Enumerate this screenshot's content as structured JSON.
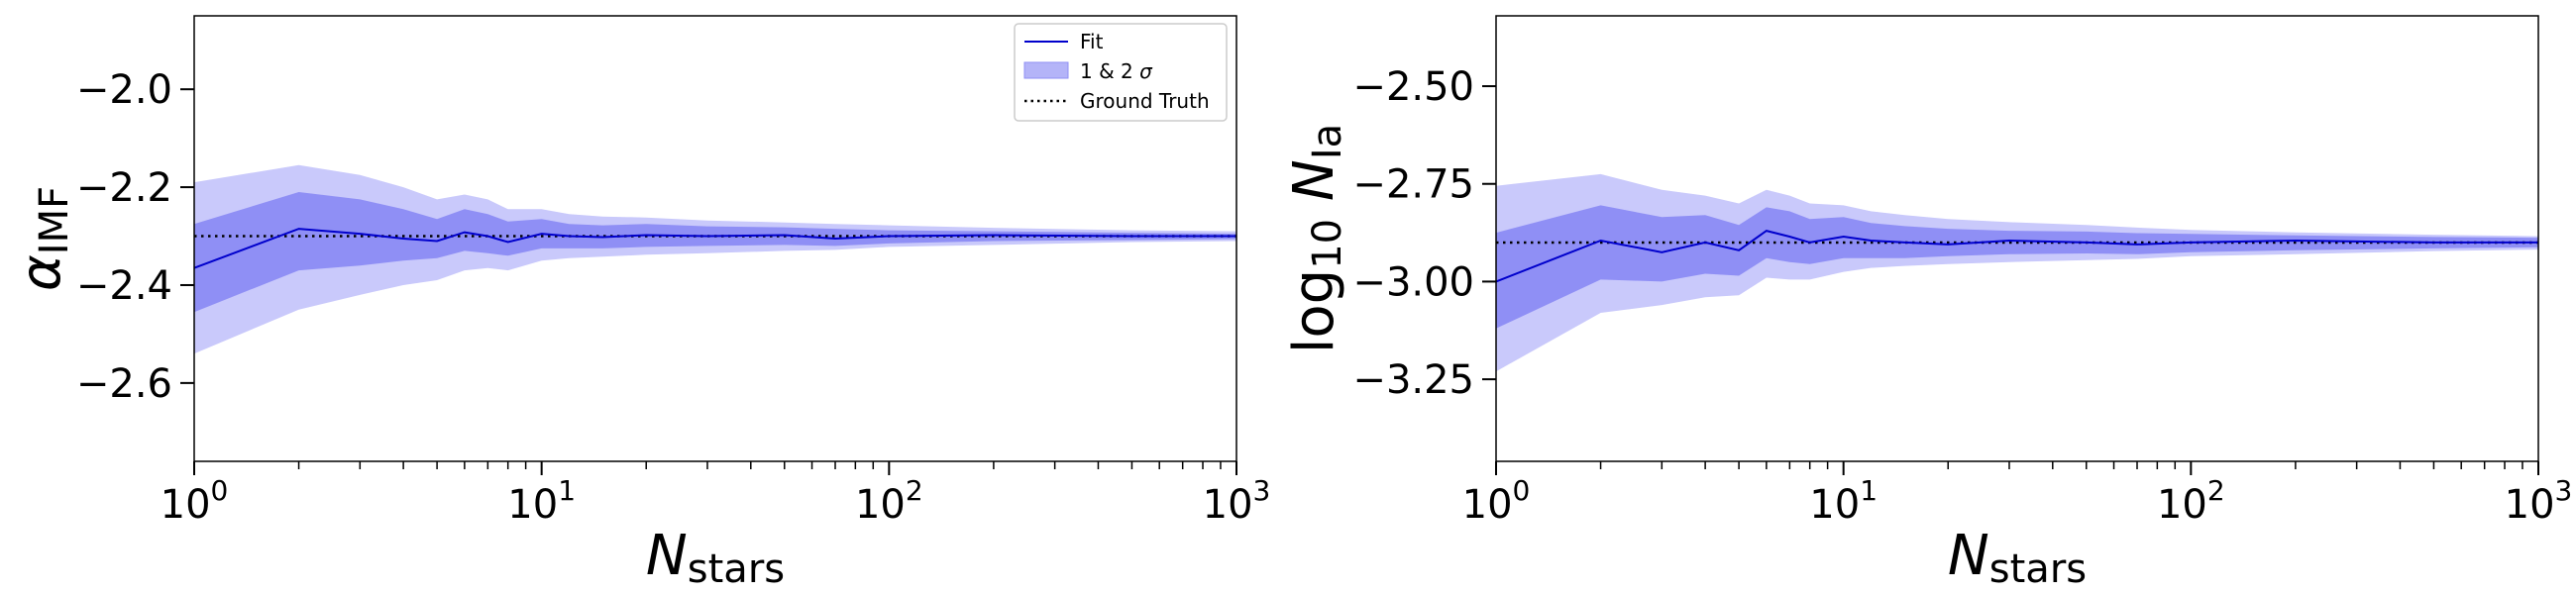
{
  "chart_data": [
    {
      "type": "line",
      "panel": "left",
      "xscale": "log",
      "xlim": [
        1,
        1000
      ],
      "ylim": [
        -2.76,
        -1.85
      ],
      "xlabel": {
        "base": "N",
        "sub": "stars"
      },
      "ylabel": {
        "base": "α",
        "sub": "IMF"
      },
      "x_ticks": [
        {
          "base": "10",
          "exp": "0",
          "value": 1
        },
        {
          "base": "10",
          "exp": "1",
          "value": 10
        },
        {
          "base": "10",
          "exp": "2",
          "value": 100
        },
        {
          "base": "10",
          "exp": "3",
          "value": 1000
        }
      ],
      "y_ticks": [
        {
          "label": "−2.0",
          "value": -2.0
        },
        {
          "label": "−2.2",
          "value": -2.2
        },
        {
          "label": "−2.4",
          "value": -2.4
        },
        {
          "label": "−2.6",
          "value": -2.6
        }
      ],
      "ground_truth": -2.3,
      "legend": {
        "placement": "top-right",
        "entries": [
          {
            "kind": "line",
            "label": "Fit"
          },
          {
            "kind": "band",
            "label_text": "1 & 2 ",
            "label_symbol": "σ"
          },
          {
            "kind": "dotted",
            "label": "Ground Truth"
          }
        ]
      },
      "series": {
        "x": [
          1,
          2,
          3,
          4,
          5,
          6,
          7,
          8,
          10,
          12,
          15,
          20,
          30,
          50,
          70,
          100,
          200,
          500,
          1000
        ],
        "fit": [
          -2.365,
          -2.285,
          -2.295,
          -2.305,
          -2.31,
          -2.292,
          -2.3,
          -2.312,
          -2.295,
          -2.3,
          -2.302,
          -2.298,
          -2.3,
          -2.298,
          -2.305,
          -2.3,
          -2.298,
          -2.3,
          -2.3
        ],
        "lo1": [
          -2.455,
          -2.37,
          -2.36,
          -2.35,
          -2.345,
          -2.33,
          -2.335,
          -2.34,
          -2.325,
          -2.325,
          -2.325,
          -2.322,
          -2.32,
          -2.318,
          -2.32,
          -2.315,
          -2.31,
          -2.308,
          -2.306
        ],
        "hi1": [
          -2.275,
          -2.21,
          -2.225,
          -2.245,
          -2.265,
          -2.245,
          -2.255,
          -2.27,
          -2.265,
          -2.275,
          -2.278,
          -2.275,
          -2.28,
          -2.282,
          -2.285,
          -2.288,
          -2.29,
          -2.293,
          -2.295
        ],
        "lo2": [
          -2.54,
          -2.45,
          -2.42,
          -2.4,
          -2.39,
          -2.37,
          -2.365,
          -2.37,
          -2.35,
          -2.345,
          -2.342,
          -2.338,
          -2.335,
          -2.33,
          -2.328,
          -2.322,
          -2.318,
          -2.312,
          -2.31
        ],
        "hi2": [
          -2.19,
          -2.155,
          -2.175,
          -2.2,
          -2.225,
          -2.215,
          -2.225,
          -2.245,
          -2.245,
          -2.255,
          -2.26,
          -2.262,
          -2.268,
          -2.272,
          -2.275,
          -2.278,
          -2.283,
          -2.288,
          -2.29
        ]
      }
    },
    {
      "type": "line",
      "panel": "right",
      "xscale": "log",
      "xlim": [
        1,
        1000
      ],
      "ylim": [
        -3.46,
        -2.32
      ],
      "xlabel": {
        "base": "N",
        "sub": "stars"
      },
      "ylabel": {
        "pre": "log",
        "presub": "10",
        "base": "N",
        "sub": "Ia"
      },
      "x_ticks": [
        {
          "base": "10",
          "exp": "0",
          "value": 1
        },
        {
          "base": "10",
          "exp": "1",
          "value": 10
        },
        {
          "base": "10",
          "exp": "2",
          "value": 100
        },
        {
          "base": "10",
          "exp": "3",
          "value": 1000
        }
      ],
      "y_ticks": [
        {
          "label": "−2.50",
          "value": -2.5
        },
        {
          "label": "−2.75",
          "value": -2.75
        },
        {
          "label": "−3.00",
          "value": -3.0
        },
        {
          "label": "−3.25",
          "value": -3.25
        }
      ],
      "ground_truth": -2.9,
      "series": {
        "x": [
          1,
          2,
          3,
          4,
          5,
          6,
          7,
          8,
          10,
          12,
          15,
          20,
          30,
          50,
          70,
          100,
          200,
          500,
          1000
        ],
        "fit": [
          -3.0,
          -2.895,
          -2.925,
          -2.9,
          -2.92,
          -2.87,
          -2.885,
          -2.9,
          -2.885,
          -2.895,
          -2.9,
          -2.905,
          -2.895,
          -2.9,
          -2.905,
          -2.9,
          -2.895,
          -2.9,
          -2.9
        ],
        "lo1": [
          -3.12,
          -2.995,
          -3.0,
          -2.98,
          -2.985,
          -2.94,
          -2.95,
          -2.955,
          -2.94,
          -2.94,
          -2.94,
          -2.935,
          -2.93,
          -2.928,
          -2.93,
          -2.925,
          -2.92,
          -2.915,
          -2.912
        ],
        "hi1": [
          -2.875,
          -2.805,
          -2.835,
          -2.83,
          -2.855,
          -2.81,
          -2.82,
          -2.84,
          -2.835,
          -2.85,
          -2.858,
          -2.865,
          -2.87,
          -2.872,
          -2.876,
          -2.878,
          -2.882,
          -2.886,
          -2.888
        ],
        "lo2": [
          -3.23,
          -3.08,
          -3.06,
          -3.04,
          -3.035,
          -2.99,
          -2.995,
          -2.995,
          -2.975,
          -2.965,
          -2.96,
          -2.955,
          -2.95,
          -2.945,
          -2.942,
          -2.935,
          -2.93,
          -2.922,
          -2.918
        ],
        "hi2": [
          -2.755,
          -2.725,
          -2.765,
          -2.78,
          -2.8,
          -2.765,
          -2.78,
          -2.8,
          -2.805,
          -2.82,
          -2.83,
          -2.84,
          -2.848,
          -2.855,
          -2.862,
          -2.868,
          -2.874,
          -2.88,
          -2.884
        ]
      }
    }
  ],
  "colors": {
    "band_outer": "#c9c9fb",
    "band_inner": "#8f8ff5",
    "fit_line": "#0000cc",
    "truth_line": "#000000"
  }
}
